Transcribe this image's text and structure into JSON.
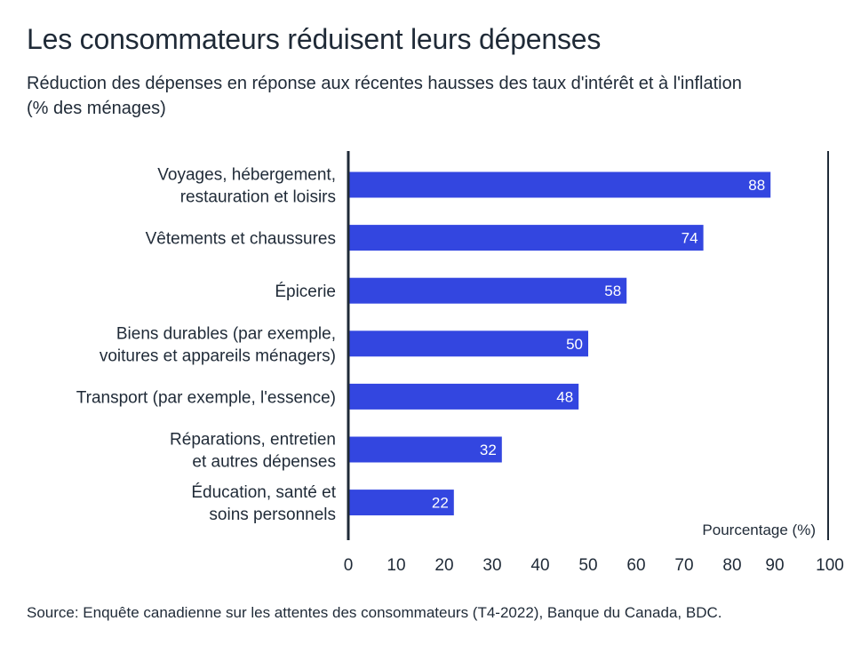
{
  "title": "Les consommateurs réduisent leurs dépenses",
  "subtitle": "Réduction des dépenses en réponse aux récentes hausses des taux d'intérêt et à l'inflation (% des ménages)",
  "source": "Source: Enquête canadienne sur les attentes des consommateurs (T4-2022), Banque du Canada, BDC.",
  "colors": {
    "bar": "#3346e0",
    "axis": "#1f2a37",
    "value_text": "#ffffff"
  },
  "chart_data": {
    "type": "bar",
    "orientation": "horizontal",
    "categories": [
      [
        "Voyages, hébergement,",
        "restauration et loisirs"
      ],
      [
        "Vêtements et chaussures"
      ],
      [
        "Épicerie"
      ],
      [
        "Biens durables (par exemple,",
        "voitures et appareils ménagers)"
      ],
      [
        "Transport (par exemple, l'essence)"
      ],
      [
        "Réparations, entretien",
        "et autres dépenses"
      ],
      [
        "Éducation, santé et",
        "soins personnels"
      ]
    ],
    "values": [
      88,
      74,
      58,
      50,
      48,
      32,
      22
    ],
    "xlim": [
      0,
      100
    ],
    "xticks": [
      "0",
      "10",
      "20",
      "30",
      "40",
      "50",
      "60",
      "70",
      "80",
      "90",
      "100"
    ],
    "xlabel": "Pourcentage (%)",
    "data_labels": true,
    "grid": false
  }
}
